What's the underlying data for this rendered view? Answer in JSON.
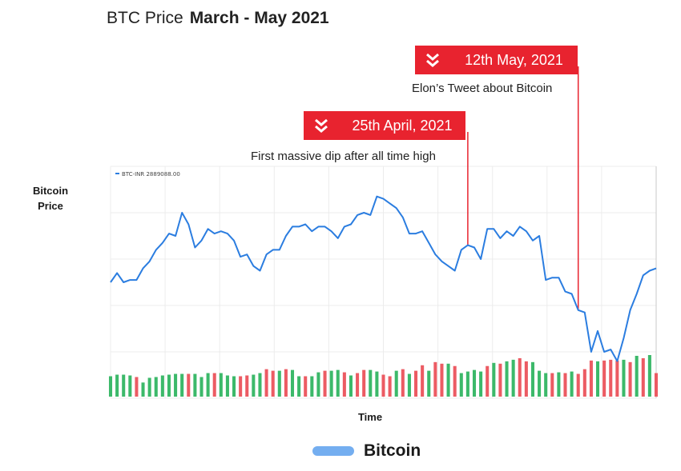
{
  "header": {
    "title_light": "BTC Price",
    "title_bold": "March - May 2021"
  },
  "annotations": [
    {
      "date": "25th April, 2021",
      "text": "First massive dip after all time high",
      "icon": "double-chevron-down-icon"
    },
    {
      "date": "12th May, 2021",
      "text": "Elon’s Tweet about Bitcoin",
      "icon": "double-chevron-down-icon"
    }
  ],
  "colors": {
    "line": "#2b7de0",
    "up_bar": "#3cb96a",
    "down_bar": "#ec5b63",
    "badge": "#e8232f",
    "legend_swatch": "#74aef0",
    "grid": "#ececec"
  },
  "chart_data": {
    "type": "line",
    "title": "BTC Price March - May 2021",
    "xlabel": "Time",
    "ylabel": "Bitcoin Price",
    "ticker_label": "BTC-INR 2889088.00",
    "legend": {
      "entries": [
        "Bitcoin"
      ],
      "position": "bottom-center"
    },
    "grid": true,
    "ylim": [
      0,
      100
    ],
    "x": [
      0,
      1,
      2,
      3,
      4,
      5,
      6,
      7,
      8,
      9,
      10,
      11,
      12,
      13,
      14,
      15,
      16,
      17,
      18,
      19,
      20,
      21,
      22,
      23,
      24,
      25,
      26,
      27,
      28,
      29,
      30,
      31,
      32,
      33,
      34,
      35,
      36,
      37,
      38,
      39,
      40,
      41,
      42,
      43,
      44,
      45,
      46,
      47,
      48,
      49,
      50,
      51,
      52,
      53,
      54,
      55,
      56,
      57,
      58,
      59,
      60,
      61,
      62,
      63,
      64,
      65,
      66,
      67,
      68,
      69,
      70,
      71,
      72,
      73,
      74,
      75,
      76,
      77,
      78,
      79,
      80,
      81,
      82,
      83,
      84
    ],
    "series": [
      {
        "name": "Bitcoin",
        "values": [
          50,
          54,
          50,
          51,
          51,
          56,
          59,
          64,
          67,
          71,
          70,
          80,
          75,
          65,
          68,
          73,
          71,
          72,
          71,
          68,
          61,
          62,
          57,
          55,
          62,
          64,
          64,
          70,
          74,
          74,
          75,
          72,
          74,
          74,
          72,
          69,
          74,
          75,
          79,
          80,
          79,
          87,
          86,
          84,
          82,
          78,
          71,
          71,
          72,
          67,
          62,
          59,
          57,
          55,
          64,
          66,
          65,
          60,
          73,
          73,
          69,
          72,
          70,
          74,
          72,
          68,
          70,
          51,
          52,
          52,
          46,
          45,
          38,
          37,
          20,
          29,
          20,
          21,
          16,
          26,
          38,
          45,
          53,
          55,
          56
        ],
        "volume": [
          26,
          28,
          28,
          27,
          25,
          18,
          24,
          25,
          27,
          28,
          29,
          29,
          29,
          29,
          25,
          30,
          30,
          30,
          27,
          26,
          26,
          27,
          28,
          30,
          35,
          33,
          33,
          35,
          34,
          26,
          26,
          26,
          31,
          33,
          33,
          34,
          31,
          27,
          30,
          34,
          34,
          32,
          28,
          26,
          33,
          35,
          29,
          33,
          40,
          33,
          44,
          42,
          42,
          39,
          30,
          32,
          34,
          32,
          39,
          43,
          42,
          45,
          47,
          49,
          45,
          44,
          33,
          30,
          30,
          31,
          30,
          32,
          29,
          35,
          46,
          45,
          46,
          47,
          46,
          47,
          44,
          52,
          49,
          53,
          30
        ],
        "volume_up": [
          true,
          true,
          true,
          true,
          false,
          true,
          true,
          true,
          true,
          true,
          true,
          true,
          false,
          true,
          true,
          true,
          false,
          true,
          true,
          true,
          false,
          false,
          true,
          true,
          false,
          false,
          true,
          false,
          true,
          true,
          false,
          true,
          true,
          false,
          true,
          true,
          false,
          true,
          false,
          false,
          true,
          true,
          false,
          false,
          true,
          false,
          true,
          false,
          false,
          true,
          false,
          false,
          true,
          false,
          true,
          true,
          true,
          true,
          false,
          true,
          false,
          true,
          true,
          false,
          false,
          true,
          true,
          true,
          false,
          true,
          false,
          true,
          false,
          false,
          false,
          true,
          false,
          false,
          false,
          true,
          false,
          true,
          false,
          true,
          false
        ]
      }
    ],
    "events": [
      {
        "label": "25th April, 2021",
        "index": 55
      },
      {
        "label": "12th May, 2021",
        "index": 72
      }
    ]
  }
}
